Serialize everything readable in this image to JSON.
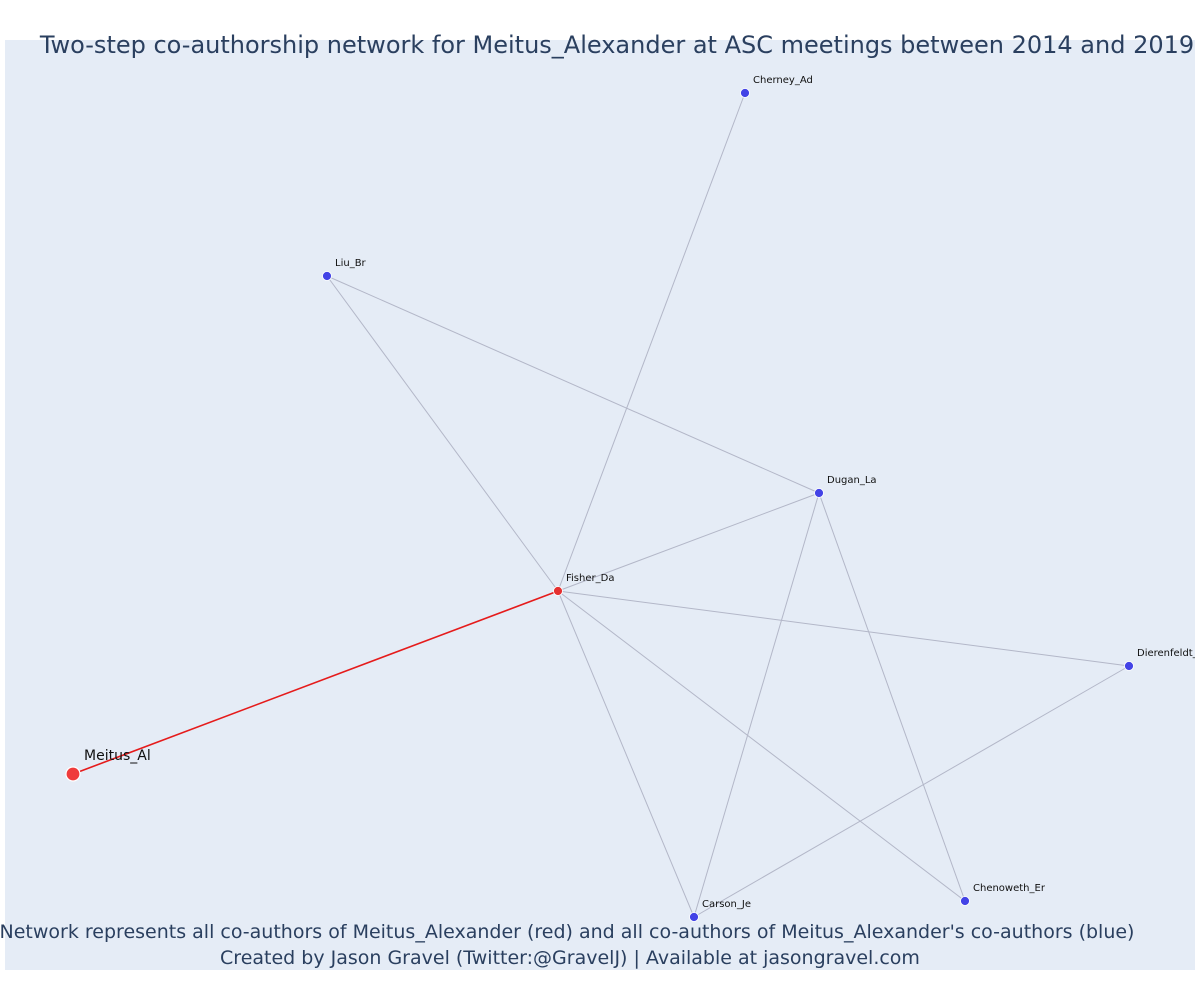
{
  "title": "Two-step co-authorship network for Meitus_Alexander at ASC meetings between 2014 and 2019",
  "caption_line1": "Network represents all co-authors of Meitus_Alexander (red) and all co-authors of Meitus_Alexander's co-authors (blue)",
  "caption_line2": "Created by Jason Gravel (Twitter:@GravelJ) | Available at jasongravel.com",
  "colors": {
    "background": "#e5ecf6",
    "ego": "#ef3b3b",
    "coauthor": "#e53030",
    "second_step": "#4343e6",
    "ego_edge": "#e51b1b",
    "edge": "#b3b7c8"
  },
  "network": {
    "nodes": [
      {
        "id": "Meitus_Al",
        "label": "Meitus_Al",
        "role": "ego"
      },
      {
        "id": "Fisher_Da",
        "label": "Fisher_Da",
        "role": "coauthor"
      },
      {
        "id": "Cherney_Ad",
        "label": "Cherney_Ad",
        "role": "second_step"
      },
      {
        "id": "Liu_Br",
        "label": "Liu_Br",
        "role": "second_step"
      },
      {
        "id": "Dugan_La",
        "label": "Dugan_La",
        "role": "second_step"
      },
      {
        "id": "Dierenfeldt_R",
        "label": "Dierenfeldt_R",
        "role": "second_step"
      },
      {
        "id": "Carson_Je",
        "label": "Carson_Je",
        "role": "second_step"
      },
      {
        "id": "Chenoweth_Er",
        "label": "Chenoweth_Er",
        "role": "second_step"
      }
    ],
    "edges": [
      {
        "source": "Meitus_Al",
        "target": "Fisher_Da",
        "type": "ego"
      },
      {
        "source": "Fisher_Da",
        "target": "Cherney_Ad",
        "type": "other"
      },
      {
        "source": "Fisher_Da",
        "target": "Liu_Br",
        "type": "other"
      },
      {
        "source": "Fisher_Da",
        "target": "Dugan_La",
        "type": "other"
      },
      {
        "source": "Fisher_Da",
        "target": "Dierenfeldt_R",
        "type": "other"
      },
      {
        "source": "Fisher_Da",
        "target": "Carson_Je",
        "type": "other"
      },
      {
        "source": "Fisher_Da",
        "target": "Chenoweth_Er",
        "type": "other"
      },
      {
        "source": "Liu_Br",
        "target": "Dugan_La",
        "type": "other"
      },
      {
        "source": "Dugan_La",
        "target": "Carson_Je",
        "type": "other"
      },
      {
        "source": "Dugan_La",
        "target": "Chenoweth_Er",
        "type": "other"
      },
      {
        "source": "Dierenfeldt_R",
        "target": "Carson_Je",
        "type": "other"
      }
    ]
  }
}
